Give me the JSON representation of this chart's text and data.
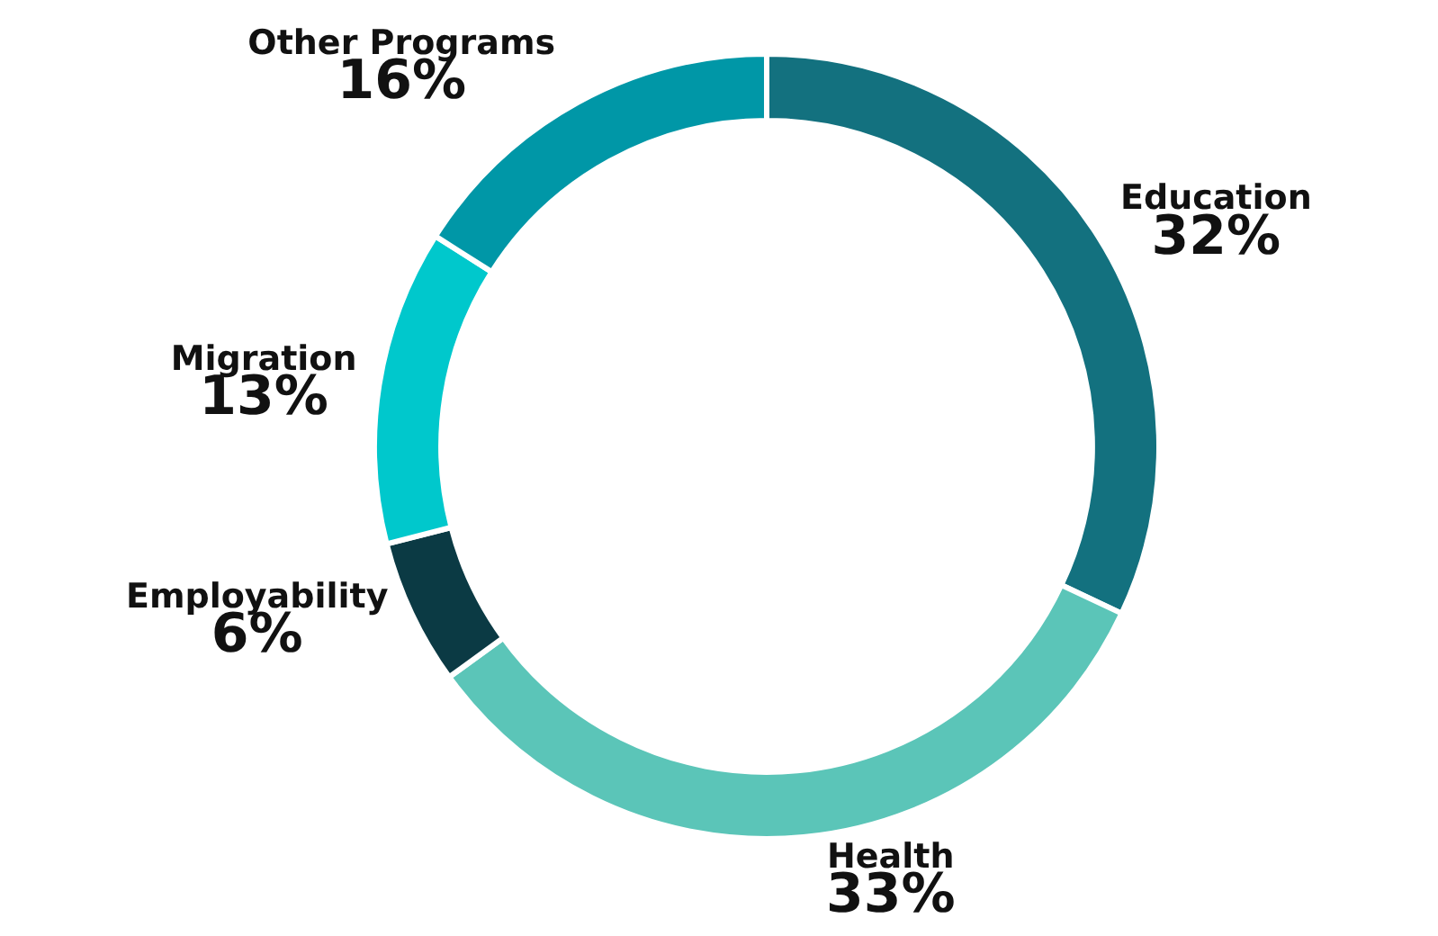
{
  "chart_data": {
    "type": "donut",
    "categories": [
      "Education",
      "Health",
      "Employability",
      "Migration",
      "Other Programs"
    ],
    "values": [
      32,
      33,
      6,
      13,
      16
    ],
    "value_labels": [
      "32%",
      "33%",
      "6%",
      "13%",
      "16%"
    ],
    "colors": [
      "#13717f",
      "#5bc5b8",
      "#0b3a44",
      "#00c8cc",
      "#0097a7"
    ],
    "legend": false
  }
}
